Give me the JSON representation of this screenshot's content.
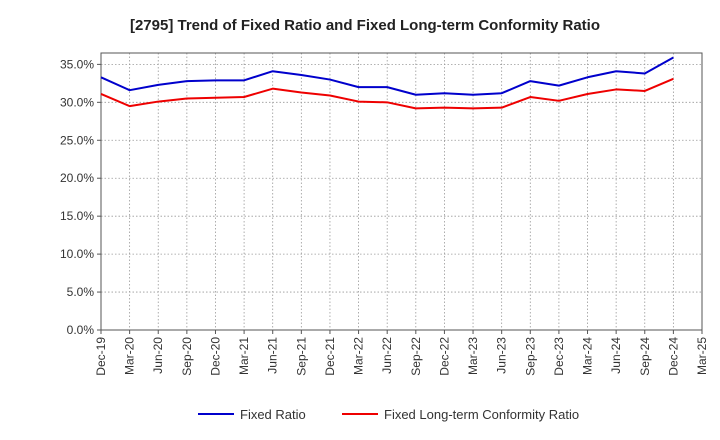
{
  "chart_data": {
    "type": "line",
    "title": "[2795]  Trend of Fixed Ratio and Fixed Long-term Conformity Ratio",
    "xlabel": "",
    "ylabel": "",
    "x": [
      "Dec-19",
      "Mar-20",
      "Jun-20",
      "Sep-20",
      "Dec-20",
      "Mar-21",
      "Jun-21",
      "Sep-21",
      "Dec-21",
      "Mar-22",
      "Jun-22",
      "Sep-22",
      "Dec-22",
      "Mar-23",
      "Jun-23",
      "Sep-23",
      "Dec-23",
      "Mar-24",
      "Jun-24",
      "Sep-24",
      "Dec-24",
      "Mar-25"
    ],
    "ylim": [
      0,
      36.5
    ],
    "yticks": [
      0,
      5,
      10,
      15,
      20,
      25,
      30,
      35
    ],
    "ytick_labels": [
      "0.0%",
      "5.0%",
      "10.0%",
      "15.0%",
      "20.0%",
      "25.0%",
      "30.0%",
      "35.0%"
    ],
    "grid": true,
    "legend_position": "bottom",
    "series": [
      {
        "name": "Fixed Ratio",
        "color": "#0000cc",
        "values": [
          33.3,
          31.6,
          32.3,
          32.8,
          32.9,
          32.9,
          34.1,
          33.6,
          33.0,
          32.0,
          32.0,
          31.0,
          31.2,
          31.0,
          31.2,
          32.8,
          32.2,
          33.3,
          34.1,
          33.8,
          35.9,
          null
        ]
      },
      {
        "name": "Fixed Long-term Conformity Ratio",
        "color": "#ee0000",
        "values": [
          31.1,
          29.5,
          30.1,
          30.5,
          30.6,
          30.7,
          31.8,
          31.3,
          30.9,
          30.1,
          30.0,
          29.2,
          29.3,
          29.2,
          29.3,
          30.7,
          30.2,
          31.1,
          31.7,
          31.5,
          33.1,
          null
        ]
      }
    ]
  }
}
